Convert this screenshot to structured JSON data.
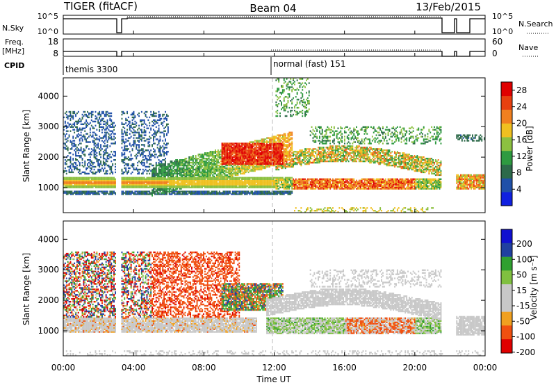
{
  "header": {
    "radar": "TIGER (fitACF)",
    "beam": "Beam 04",
    "date": "13/Feb/2015"
  },
  "colors": {
    "power_scale": [
      "#1020e0",
      "#2050a8",
      "#2d6a4a",
      "#2e9a40",
      "#8cc040",
      "#f0c020",
      "#f08020",
      "#e84010",
      "#e00000"
    ],
    "velocity_scale": [
      "#e00000",
      "#f05010",
      "#f0a020",
      "#c8c8c8",
      "#c8c8c8",
      "#80c040",
      "#30a030",
      "#2040a0",
      "#1010d0"
    ],
    "gap": "#ffffff",
    "frame": "#000000"
  },
  "chart_data": {
    "type": "heatmap",
    "time_axis": {
      "label": "Time UT",
      "ticks": [
        "00:00",
        "04:00",
        "08:00",
        "12:00",
        "16:00",
        "20:00",
        "00:00"
      ],
      "range_hours": [
        0,
        24
      ]
    },
    "status_panel": {
      "nsky_label": "N.Sky",
      "nsky_ticks": [
        "10^5",
        "10^0"
      ],
      "nsearch_label": "N.Search",
      "freq_label": "Freq.",
      "freq_unit": "[MHz]",
      "freq_ticks": [
        "18",
        "8"
      ],
      "nave_label": "Nave",
      "nave_ticks": [
        "60",
        "0"
      ],
      "cpid_label": "CPID",
      "cpid_modes": [
        {
          "name": "themis 3300",
          "start_hour": 0
        },
        {
          "name": "normal (fast) 151",
          "start_hour": 12
        }
      ],
      "data_gaps_hours": [
        [
          3.0,
          3.3
        ],
        [
          21.6,
          22.3
        ]
      ]
    },
    "range_axis": {
      "label": "Slant Range [km]",
      "ticks": [
        1000,
        2000,
        3000,
        4000
      ],
      "range_km": [
        180,
        4600
      ]
    },
    "power": {
      "colorbar_label": "Power [dB]",
      "ticks": [
        4,
        8,
        12,
        16,
        20,
        24,
        28
      ],
      "range": [
        0,
        30
      ]
    },
    "velocity": {
      "colorbar_label": "Velocity [m s⁻¹]",
      "ticks": [
        200,
        100,
        50,
        15,
        -15,
        -50,
        -100,
        -200
      ],
      "range": [
        -250,
        250
      ]
    }
  }
}
